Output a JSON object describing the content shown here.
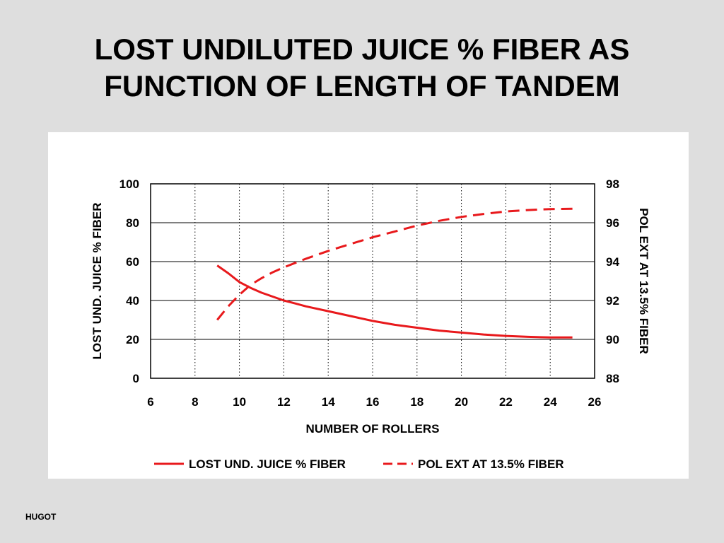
{
  "slide": {
    "title_line1": "LOST UNDILUTED JUICE % FIBER AS",
    "title_line2": "FUNCTION OF LENGTH OF TANDEM",
    "footer": "HUGOT"
  },
  "colors": {
    "background": "#dedede",
    "panel": "#ffffff",
    "series": "#e8191c",
    "gridline": "#000000"
  },
  "chart_data": {
    "type": "line",
    "xlabel": "NUMBER OF ROLLERS",
    "ylabel": "LOST UND. JUICE % FIBER",
    "y2label": "POL EXT AT 13.5% FIBER",
    "xlim": [
      6,
      26
    ],
    "ylim": [
      0,
      100
    ],
    "y2lim": [
      88,
      98
    ],
    "x_ticks": [
      6,
      8,
      10,
      12,
      14,
      16,
      18,
      20,
      22,
      24,
      26
    ],
    "y_ticks": [
      0,
      20,
      40,
      60,
      80,
      100
    ],
    "y2_ticks": [
      88,
      90,
      92,
      94,
      96,
      98
    ],
    "grid": "vertical dotted at x ticks, horizontal solid at y ticks",
    "legend_position": "bottom",
    "series": [
      {
        "name": "LOST UND. JUICE % FIBER",
        "axis": "left",
        "style": "solid",
        "color": "#e8191c",
        "x": [
          9,
          9.5,
          10,
          10.5,
          11,
          11.5,
          12,
          12.5,
          13,
          14,
          15,
          16,
          17,
          18,
          19,
          20,
          21,
          22,
          23,
          24,
          25
        ],
        "y": [
          58,
          54,
          49.5,
          46.5,
          44,
          42,
          40,
          38.5,
          37,
          34.5,
          32,
          29.5,
          27.5,
          26,
          24.5,
          23.5,
          22.5,
          21.8,
          21.3,
          21,
          21
        ]
      },
      {
        "name": "POL EXT AT 13.5% FIBER",
        "axis": "right",
        "style": "dashed",
        "color": "#e8191c",
        "x": [
          9,
          9.5,
          10,
          10.5,
          11,
          11.5,
          12,
          13,
          14,
          15,
          16,
          17,
          18,
          19,
          20,
          21,
          22,
          23,
          24,
          25
        ],
        "y": [
          91.0,
          91.7,
          92.3,
          92.8,
          93.15,
          93.45,
          93.7,
          94.15,
          94.55,
          94.9,
          95.25,
          95.55,
          95.85,
          96.1,
          96.3,
          96.45,
          96.58,
          96.65,
          96.7,
          96.72
        ]
      }
    ]
  }
}
